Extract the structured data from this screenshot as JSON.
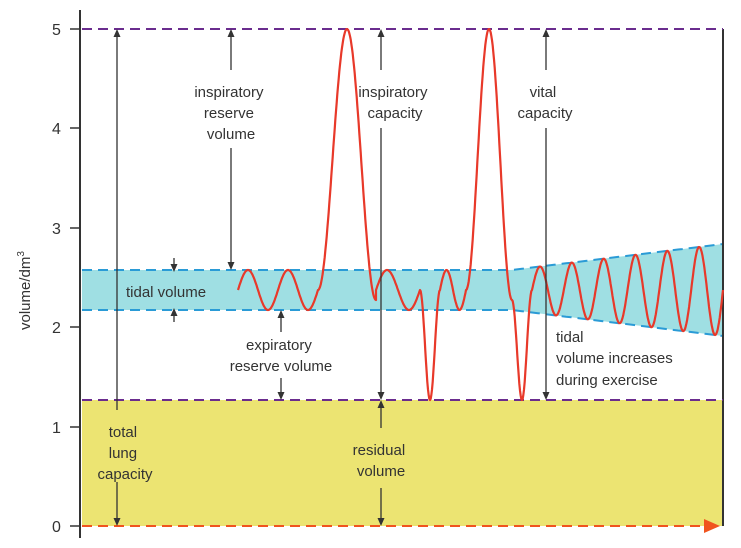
{
  "colors": {
    "purple_line": "#6a2c8e",
    "blue_line": "#2a9bd6",
    "tidal_fill": "#9fdfe3",
    "residual_fill": "#ece472",
    "trace": "#e8392a",
    "zero_line": "#f0541e",
    "arrow": "#333333"
  },
  "axis": {
    "ylabel": "volume/dm",
    "ylabel_sup": "3",
    "ticks": [
      "0",
      "1",
      "2",
      "3",
      "4",
      "5"
    ]
  },
  "labels": {
    "tidal_volume": "tidal volume",
    "irv": [
      "inspiratory",
      "reserve",
      "volume"
    ],
    "ic": [
      "inspiratory",
      "capacity"
    ],
    "vc": [
      "vital",
      "capacity"
    ],
    "erv": [
      "expiratory",
      "reserve volume"
    ],
    "tidal_increase": [
      "tidal",
      "volume increases",
      "during exercise"
    ],
    "tlc": [
      "total",
      "lung",
      "capacity"
    ],
    "rv": [
      "residual",
      "volume"
    ]
  }
}
